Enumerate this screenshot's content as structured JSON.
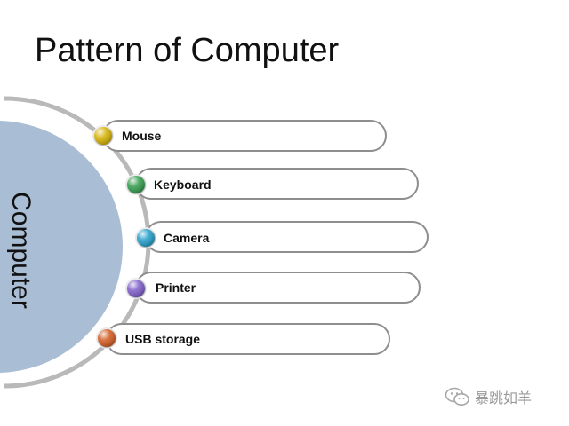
{
  "title": "Pattern of Computer",
  "center_label": "Computer",
  "items": [
    {
      "label": "Mouse",
      "color": "#d4b000"
    },
    {
      "label": "Keyboard",
      "color": "#2e9a48"
    },
    {
      "label": "Camera",
      "color": "#1f9cc8"
    },
    {
      "label": "Printer",
      "color": "#7b5ac8"
    },
    {
      "label": "USB storage",
      "color": "#d0581e"
    }
  ],
  "watermark": {
    "text": "暴跳如羊",
    "icon": "wechat-icon"
  },
  "colors": {
    "circle_fill": "#a9bdd4",
    "arc": "#b9b9b9",
    "box_border": "#8e8e8e"
  }
}
